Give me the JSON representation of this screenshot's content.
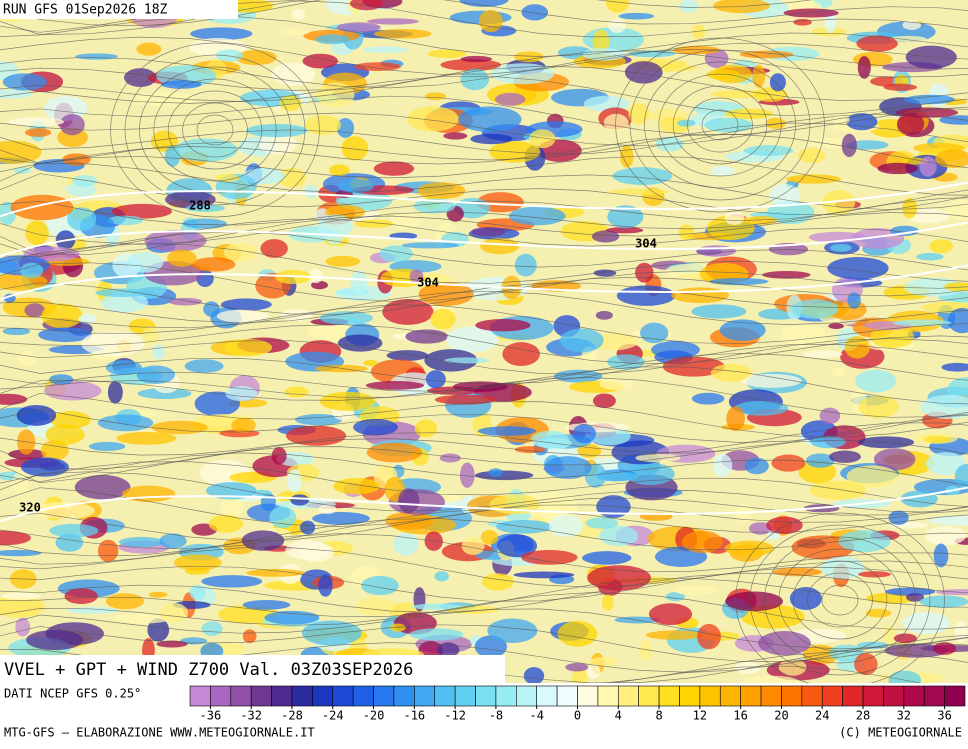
{
  "header": {
    "run": "RUN GFS 01Sep2026 18Z",
    "title": "VVEL + GPT + WIND Z700 Val. 03Z03SEP2026"
  },
  "contour_labels": [
    "288",
    "304",
    "304",
    "320"
  ],
  "colorbar": {
    "range": [
      -38,
      38
    ],
    "ticks": [
      -36,
      -32,
      -28,
      -24,
      -20,
      -16,
      -12,
      -8,
      -4,
      0,
      4,
      8,
      12,
      16,
      20,
      24,
      28,
      32,
      36
    ],
    "colors": [
      "#c48ad8",
      "#a868c0",
      "#9050a8",
      "#703890",
      "#502c90",
      "#2c2ca0",
      "#1c36c0",
      "#1e4ad8",
      "#2060e8",
      "#2878f0",
      "#3090f0",
      "#40a8f0",
      "#50c0f0",
      "#60d0f0",
      "#78e0f0",
      "#98ecf4",
      "#b8f4f8",
      "#d8fafc",
      "#f0fcff",
      "#fffce0",
      "#fff8b0",
      "#fff080",
      "#ffe850",
      "#ffe020",
      "#ffd400",
      "#ffc400",
      "#ffb400",
      "#ffa000",
      "#ff8c00",
      "#ff7400",
      "#f85a10",
      "#f04020",
      "#e02828",
      "#d01838",
      "#c01040",
      "#b00848",
      "#a00850",
      "#900050"
    ]
  },
  "footer": {
    "source": "DATI NCEP GFS 0.25°",
    "credit": "MTG-GFS – ELABORAZIONE WWW.METEOGIORNALE.IT",
    "copyright": "(C) METEOGIORNALE"
  }
}
